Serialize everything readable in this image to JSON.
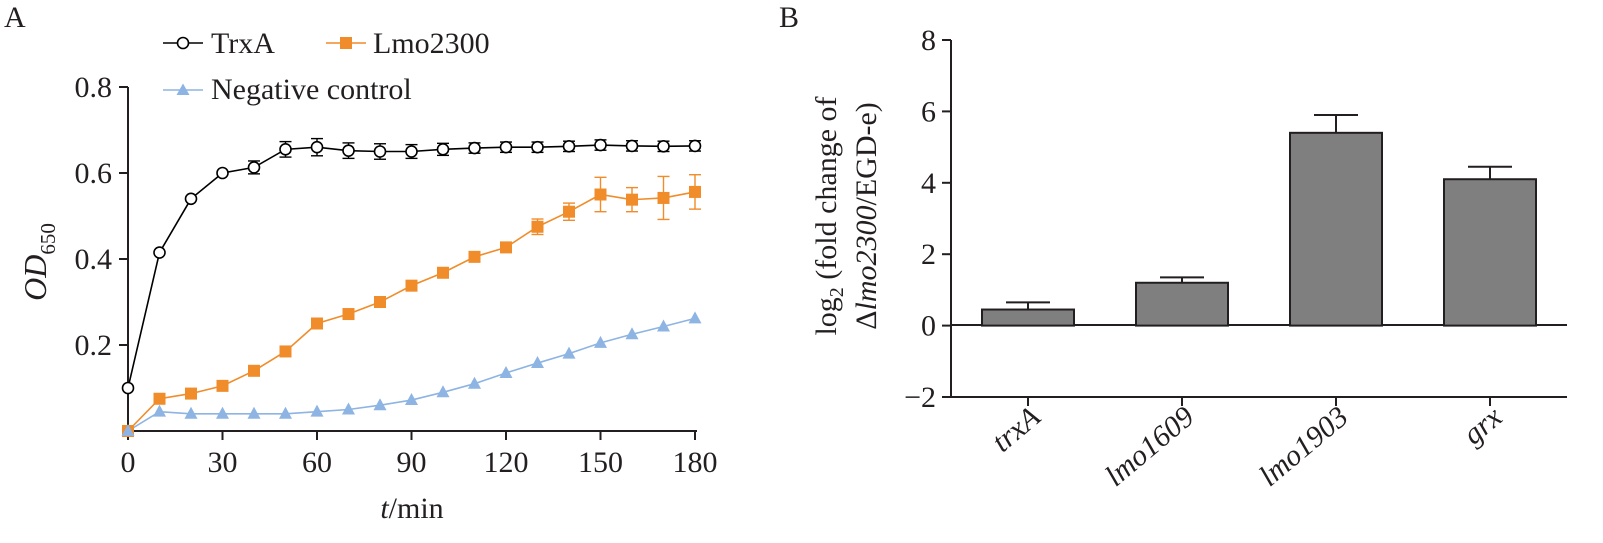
{
  "chart_data": [
    {
      "panel_label": "A",
      "type": "line",
      "xlabel": {
        "italic": "t",
        "rest": "/min"
      },
      "ylabel": {
        "italic": "OD",
        "sub": "650"
      },
      "xlim": [
        0,
        180
      ],
      "ylim": [
        0,
        0.8
      ],
      "xticks": [
        "0",
        "30",
        "60",
        "90",
        "120",
        "150",
        "180"
      ],
      "yticks": [
        "0.2",
        "0.4",
        "0.6",
        "0.8"
      ],
      "x": [
        0,
        10,
        20,
        30,
        40,
        50,
        60,
        70,
        80,
        90,
        100,
        110,
        120,
        130,
        140,
        150,
        160,
        170,
        180
      ],
      "legend_placement": "top-left",
      "series": [
        {
          "name": "TrxA",
          "marker": "open-circle",
          "color": "#000000",
          "values": [
            0.1,
            0.415,
            0.54,
            0.6,
            0.613,
            0.655,
            0.66,
            0.652,
            0.65,
            0.65,
            0.655,
            0.658,
            0.66,
            0.66,
            0.662,
            0.665,
            0.663,
            0.662,
            0.663
          ],
          "errors": [
            0,
            0,
            0,
            0,
            0.015,
            0.018,
            0.02,
            0.018,
            0.018,
            0.016,
            0.014,
            0.012,
            0.012,
            0.012,
            0.012,
            0.012,
            0.012,
            0.012,
            0.012
          ]
        },
        {
          "name": "Lmo2300",
          "marker": "filled-square",
          "color": "#f08c2a",
          "values": [
            0.0,
            0.075,
            0.087,
            0.105,
            0.14,
            0.185,
            0.25,
            0.272,
            0.3,
            0.338,
            0.368,
            0.405,
            0.427,
            0.475,
            0.51,
            0.55,
            0.538,
            0.542,
            0.556
          ],
          "errors": [
            0,
            0,
            0,
            0,
            0,
            0,
            0,
            0,
            0,
            0,
            0,
            0,
            0,
            0.018,
            0.02,
            0.04,
            0.028,
            0.05,
            0.04
          ]
        },
        {
          "name": "Negative control",
          "marker": "filled-triangle",
          "color": "#8db4e2",
          "values": [
            0.0,
            0.045,
            0.04,
            0.04,
            0.04,
            0.04,
            0.045,
            0.05,
            0.06,
            0.072,
            0.09,
            0.11,
            0.135,
            0.158,
            0.18,
            0.205,
            0.225,
            0.243,
            0.262
          ],
          "errors": []
        }
      ]
    },
    {
      "panel_label": "B",
      "type": "bar",
      "ylabel": {
        "line1_pre": "log",
        "line1_sub": "2",
        "line1_post": " (fold change of",
        "line2_delta": "Δ",
        "line2_italic": "lmo2300",
        "line2_post": "/EGD-e)"
      },
      "ylim": [
        -2,
        8
      ],
      "yticks": [
        "−2",
        "0",
        "2",
        "4",
        "6",
        "8"
      ],
      "categories": [
        "trxA",
        "lmo1609",
        "lmo1903",
        "grx"
      ],
      "values": [
        0.45,
        1.2,
        5.4,
        4.1
      ],
      "errors": [
        0.2,
        0.15,
        0.5,
        0.35
      ],
      "bar_color": "#7f7f7f"
    }
  ]
}
